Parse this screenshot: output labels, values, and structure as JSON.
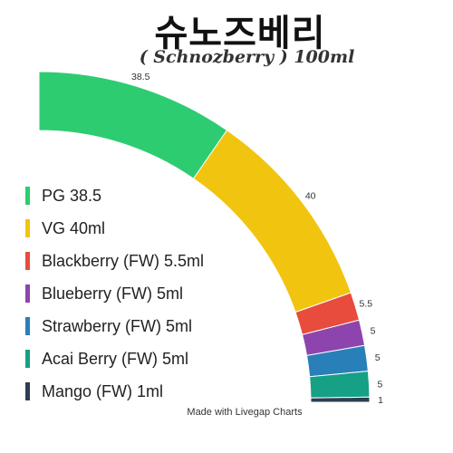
{
  "chart_data": {
    "type": "pie",
    "title": "슈노즈베리",
    "subtitle": "( Schnozberry ) 100ml",
    "categories": [
      "PG 38.5",
      "VG 40ml",
      "Blackberry (FW) 5.5ml",
      "Blueberry (FW) 5ml",
      "Strawberry (FW) 5ml",
      "Acai Berry (FW) 5ml",
      "Mango (FW) 1ml"
    ],
    "values": [
      38.5,
      40,
      5.5,
      5,
      5,
      5,
      1
    ],
    "value_labels": [
      "38.5",
      "40",
      "5.5",
      "5",
      "5",
      "5",
      "1"
    ],
    "colors": [
      "#2ecc71",
      "#f1c40f",
      "#e74c3c",
      "#8e44ad",
      "#2980b9",
      "#16a085",
      "#2c3e50"
    ],
    "legend_position": "left"
  },
  "credit": "Made with Livegap Charts"
}
